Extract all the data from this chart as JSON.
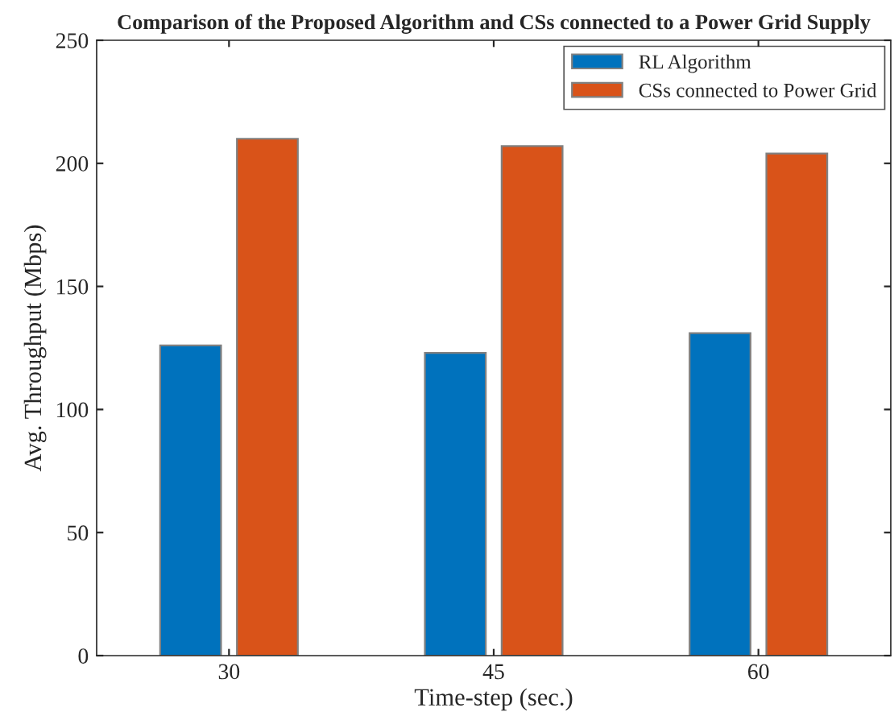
{
  "chart_data": {
    "type": "bar",
    "title": "Comparison of the Proposed Algorithm and CSs connected to a Power Grid Supply",
    "xlabel": "Time-step (sec.)",
    "ylabel": "Avg. Throughput (Mbps)",
    "categories": [
      "30",
      "45",
      "60"
    ],
    "series": [
      {
        "name": "RL Algorithm",
        "color": "#0072bd",
        "values": [
          126,
          123,
          131
        ]
      },
      {
        "name": "CSs connected to Power Grid",
        "color": "#d95319",
        "values": [
          210,
          207,
          204
        ]
      }
    ],
    "ylim": [
      0,
      250
    ],
    "yticks": [
      0,
      50,
      100,
      150,
      200,
      250
    ],
    "grid": false,
    "legend": "top right"
  }
}
